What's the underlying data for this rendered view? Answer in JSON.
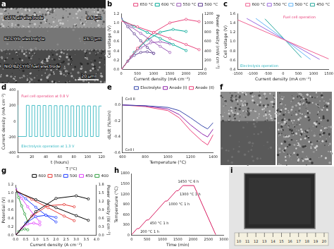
{
  "chart_data": [
    {
      "panel": "b",
      "type": "line",
      "x_label": "Current density (mA cm⁻²)",
      "y_label": "Cell voltage (V)",
      "y2_label": "Power density (mW cm⁻²)",
      "xlim": [
        0,
        2500
      ],
      "xticks": [
        0,
        500,
        1000,
        1500,
        2000,
        2500
      ],
      "ylim": [
        0,
        1.2
      ],
      "yticks": [
        {
          "value": 0,
          "label": "0.0"
        },
        0.2,
        0.4,
        0.6,
        0.8,
        {
          "value": 1,
          "label": "1.0"
        },
        1.2
      ],
      "y2lim": [
        0,
        1200
      ],
      "y2ticks": [
        0,
        200,
        400,
        600,
        800,
        1000,
        1200
      ],
      "legend": "top",
      "grid": false,
      "marker": "circle",
      "series": [
        {
          "name": "650 °C",
          "color": "#e8417a",
          "x": [
            0,
            500,
            1000,
            1500,
            2000,
            2400
          ],
          "values": [
            1.05,
            0.92,
            0.8,
            0.67,
            0.54,
            0.43
          ],
          "power_density": [
            0,
            460,
            800,
            1005,
            1080,
            1032
          ]
        },
        {
          "name": "600 °C",
          "color": "#00a896",
          "x": [
            0,
            400,
            800,
            1200,
            1600,
            2000
          ],
          "values": [
            1.07,
            0.93,
            0.8,
            0.67,
            0.54,
            0.41
          ],
          "power_density": [
            0,
            372,
            640,
            804,
            864,
            820
          ]
        },
        {
          "name": "550 °C",
          "color": "#9b59b6",
          "x": [
            0,
            300,
            600,
            900,
            1200,
            1500
          ],
          "values": [
            1.08,
            0.92,
            0.78,
            0.64,
            0.5,
            0.37
          ],
          "power_density": [
            0,
            276,
            468,
            576,
            600,
            555
          ]
        },
        {
          "name": "500 °C",
          "color": "#5b3a8e",
          "x": [
            0,
            200,
            400,
            600,
            800,
            1000
          ],
          "values": [
            1.09,
            0.92,
            0.77,
            0.62,
            0.48,
            0.35
          ],
          "power_density": [
            0,
            184,
            308,
            372,
            384,
            350
          ]
        }
      ]
    },
    {
      "panel": "c",
      "type": "line",
      "x_label": "Current density (mA cm⁻²)",
      "y_label": "Cell voltage (V)",
      "xlim": [
        -1500,
        1500
      ],
      "xticks": [
        -1500,
        -1000,
        -500,
        0,
        500,
        1000,
        1500
      ],
      "ylim": [
        0.4,
        1.6
      ],
      "yticks": [
        0.4,
        0.6,
        0.8,
        {
          "value": 1,
          "label": "1.0"
        },
        1.2,
        1.4,
        1.6
      ],
      "legend": "top",
      "grid": false,
      "annotations": [
        {
          "text": "Fuel cell operation",
          "color": "#e8417a"
        },
        {
          "text": "Electrolysis operation",
          "color": "#2fb5c0"
        }
      ],
      "series": [
        {
          "name": "600 °C",
          "color": "#f06292",
          "x": [
            -1500,
            0,
            1500
          ],
          "values": [
            1.47,
            1.05,
            0.63
          ]
        },
        {
          "name": "550 °C",
          "color": "#9c6ade",
          "x": [
            -1200,
            0,
            1200
          ],
          "values": [
            1.5,
            1.06,
            0.62
          ]
        },
        {
          "name": "500 °C",
          "color": "#64b5f6",
          "x": [
            -900,
            0,
            900
          ],
          "values": [
            1.5,
            1.07,
            0.62
          ]
        },
        {
          "name": "450 °C",
          "color": "#26a69a",
          "x": [
            -600,
            0,
            600
          ],
          "values": [
            1.49,
            1.08,
            0.66
          ]
        }
      ]
    },
    {
      "panel": "d",
      "type": "line",
      "x_label": "t (hours)",
      "y_label": "Current density (mA cm⁻²)",
      "xlim": [
        0,
        120
      ],
      "xticks": [
        0,
        20,
        40,
        60,
        80,
        100,
        120
      ],
      "ylim": [
        -400,
        400
      ],
      "yticks": [
        -400,
        -200,
        0,
        200,
        400
      ],
      "grid": false,
      "line_style": "step",
      "annotations": [
        {
          "text": "Fuel cell operation at 0.8 V",
          "color": "#e8417a"
        },
        {
          "text": "Electrolysis operation at 1.3 V",
          "color": "#2fb5c0"
        }
      ],
      "series": [
        {
          "color": "#4dc0c8",
          "x": [
            0,
            12,
            16,
            20,
            24,
            28,
            32,
            36,
            40,
            44,
            48,
            52,
            56,
            60,
            64,
            68,
            72,
            76,
            80,
            84,
            88,
            92,
            96,
            100,
            104,
            108,
            112,
            116,
            120
          ],
          "values": [
            210,
            -190,
            208,
            -190,
            207,
            -190,
            206,
            -190,
            206,
            -190,
            205,
            -190,
            204,
            -190,
            204,
            -190,
            203,
            -190,
            202,
            -190,
            202,
            -190,
            201,
            -190,
            200,
            -190,
            200,
            -190,
            199
          ]
        }
      ]
    },
    {
      "panel": "e",
      "type": "line",
      "x_label": "Temperature (°C)",
      "y_label": "dL/dt (%/min)",
      "xlim": [
        600,
        1400
      ],
      "xticks": [
        600,
        800,
        1000,
        1200,
        1400
      ],
      "ylim": [
        -0.6,
        0.1
      ],
      "yticks": [
        -0.6,
        -0.4,
        -0.2,
        {
          "value": 0,
          "label": "0.0"
        }
      ],
      "legend": "top",
      "grid": false,
      "annotations": [
        {
          "text": "Cell II"
        },
        {
          "text": "Cell I"
        }
      ],
      "series": [
        {
          "name": "Electrolyte",
          "color": "#3949ab",
          "x": [
            600,
            800,
            1000,
            1100,
            1200,
            1300,
            1350,
            1400
          ],
          "values": [
            0,
            -0.01,
            -0.03,
            -0.07,
            -0.16,
            -0.26,
            -0.3,
            -0.22
          ]
        },
        {
          "name": "Anode (I)",
          "color": "#8e24aa",
          "x": [
            600,
            800,
            1000,
            1100,
            1200,
            1300,
            1350,
            1400
          ],
          "values": [
            0,
            -0.01,
            -0.05,
            -0.12,
            -0.25,
            -0.36,
            -0.4,
            -0.3
          ]
        },
        {
          "name": "Anode (II)",
          "color": "#ec407a",
          "x": [
            600,
            800,
            1000,
            1100,
            1200,
            1300,
            1350,
            1400
          ],
          "values": [
            0,
            -0.02,
            -0.07,
            -0.16,
            -0.32,
            -0.45,
            -0.5,
            -0.37
          ]
        }
      ]
    },
    {
      "panel": "g",
      "type": "line",
      "x_label": "Current density (A cm⁻²)",
      "y_label": "Potential (V)",
      "y2_label": "Power density (W cm⁻²)",
      "xlim": [
        0,
        4
      ],
      "xticks": [
        {
          "value": 0,
          "label": "0.0"
        },
        0.5,
        {
          "value": 1,
          "label": "1.0"
        },
        1.5,
        {
          "value": 2,
          "label": "2.0"
        },
        2.5,
        {
          "value": 3,
          "label": "3.0"
        },
        3.5,
        {
          "value": 4,
          "label": "4.0"
        }
      ],
      "ylim": [
        0,
        1.2
      ],
      "yticks": [
        {
          "value": 0,
          "label": "0.0"
        },
        0.2,
        0.4,
        0.6,
        0.8,
        {
          "value": 1,
          "label": "1.0"
        },
        1.2
      ],
      "y2lim": [
        0,
        1.8
      ],
      "y2ticks": [
        {
          "value": 0,
          "label": "0.0"
        },
        0.3,
        0.6,
        0.9,
        1.2,
        1.5,
        1.8
      ],
      "legend": "top",
      "legend_title": "T (°C)",
      "grid": false,
      "marker": "circle",
      "series": [
        {
          "name": "600",
          "color": "#000000",
          "x": [
            0,
            1,
            2,
            3,
            3.6
          ],
          "values": [
            1.05,
            0.85,
            0.66,
            0.47,
            0.36
          ],
          "power_density": [
            0,
            0.85,
            1.32,
            1.41,
            1.3
          ]
        },
        {
          "name": "550",
          "color": "#e53935",
          "x": [
            0,
            0.8,
            1.6,
            2.4,
            2.9
          ],
          "values": [
            1.07,
            0.86,
            0.66,
            0.46,
            0.35
          ],
          "power_density": [
            0,
            0.69,
            1.06,
            1.1,
            1.02
          ]
        },
        {
          "name": "500",
          "color": "#1e3cff",
          "x": [
            0,
            0.5,
            1.0,
            1.5,
            2.0
          ],
          "values": [
            1.08,
            0.87,
            0.67,
            0.48,
            0.32
          ],
          "power_density": [
            0,
            0.44,
            0.67,
            0.72,
            0.64
          ]
        },
        {
          "name": "450",
          "color": "#e040fb",
          "x": [
            0,
            0.3,
            0.6,
            0.9,
            1.2
          ],
          "values": [
            1.1,
            0.88,
            0.68,
            0.49,
            0.32
          ],
          "power_density": [
            0,
            0.26,
            0.41,
            0.44,
            0.38
          ]
        },
        {
          "name": "400",
          "color": "#2e9e3e",
          "x": [
            0,
            0.15,
            0.3,
            0.45,
            0.6
          ],
          "values": [
            1.11,
            0.9,
            0.7,
            0.51,
            0.33
          ],
          "power_density": [
            0,
            0.14,
            0.21,
            0.23,
            0.2
          ]
        }
      ]
    },
    {
      "panel": "h",
      "type": "line",
      "x_label": "Time (min)",
      "y_label": "Temperature (°C)",
      "xlim": [
        0,
        3000
      ],
      "xticks": [
        0,
        500,
        1000,
        1500,
        2000,
        2500,
        3000
      ],
      "ylim": [
        0,
        1800
      ],
      "yticks": [
        0,
        300,
        600,
        900,
        1200,
        1500,
        1800
      ],
      "grid": false,
      "annotations": [
        {
          "text": "200 °C 1 h"
        },
        {
          "text": "450 °C 1 h"
        },
        {
          "text": "1000 °C 1 h"
        },
        {
          "text": "1300 °C 1 h"
        },
        {
          "text": "1450 °C 6 h"
        }
      ],
      "series": [
        {
          "color": "#d81b60",
          "x": [
            0,
            175,
            235,
            485,
            545,
            1095,
            1155,
            1455,
            1515,
            1665,
            2025,
            2735
          ],
          "values": [
            25,
            200,
            200,
            450,
            450,
            1000,
            1000,
            1300,
            1300,
            1450,
            1450,
            25
          ]
        }
      ]
    }
  ],
  "images": [
    {
      "panel": "a",
      "layers": [
        {
          "name": "SCFN air electrode",
          "thickness": "9.6 μm"
        },
        {
          "name": "BZCYYb electrolyte",
          "thickness": "26.0 μm"
        },
        {
          "name": "NiO-BZCYYb fuel electrode"
        }
      ],
      "scale_bar": "20 μm"
    },
    {
      "panel": "f"
    },
    {
      "panel": "i",
      "ruler": [
        10,
        11,
        12,
        13,
        14,
        15,
        16,
        17,
        18,
        19,
        20
      ]
    }
  ]
}
